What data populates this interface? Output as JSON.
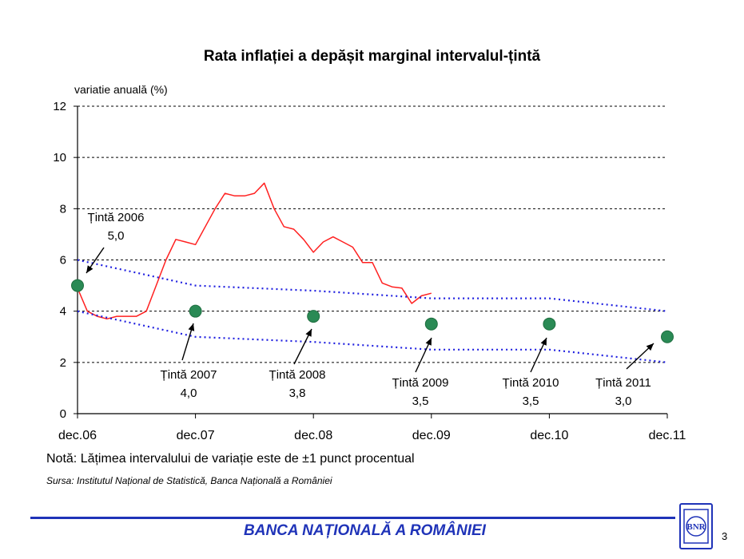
{
  "slide": {
    "footer_text": "BANCA NAȚIONALĂ A ROMÂNIEI",
    "page_number": "3",
    "logo_text": "BNR",
    "brand_color": "#1f33b8"
  },
  "chart_data": {
    "type": "line",
    "title": "Rata inflației a depășit marginal intervalul-țintă",
    "ylabel": "variatie anuală (%)",
    "xlabel": "",
    "x_ticks": [
      "dec.06",
      "dec.07",
      "dec.08",
      "dec.09",
      "dec.10",
      "dec.11"
    ],
    "y_ticks": [
      "0",
      "2",
      "4",
      "6",
      "8",
      "10",
      "12"
    ],
    "ylim": [
      0,
      12
    ],
    "x_range": [
      "2006-12",
      "2011-12"
    ],
    "grid": "horizontal dashed",
    "series": [
      {
        "color": "#ff2020",
        "x": [
          "2006-12",
          "2007-01",
          "2007-02",
          "2007-03",
          "2007-04",
          "2007-05",
          "2007-06",
          "2007-07",
          "2007-08",
          "2007-09",
          "2007-10",
          "2007-11",
          "2007-12",
          "2008-01",
          "2008-02",
          "2008-03",
          "2008-04",
          "2008-05",
          "2008-06",
          "2008-07",
          "2008-08",
          "2008-09",
          "2008-10",
          "2008-11",
          "2008-12",
          "2009-01",
          "2009-02",
          "2009-03",
          "2009-04",
          "2009-05",
          "2009-06",
          "2009-07",
          "2009-08",
          "2009-09",
          "2009-10",
          "2009-11",
          "2009-12"
        ],
        "values": [
          4.9,
          4.0,
          3.8,
          3.7,
          3.8,
          3.8,
          3.8,
          4.0,
          5.0,
          6.0,
          6.8,
          6.7,
          6.6,
          7.3,
          8.0,
          8.6,
          8.5,
          8.5,
          8.6,
          9.0,
          8.0,
          7.3,
          7.2,
          6.8,
          6.3,
          6.7,
          6.9,
          6.7,
          6.5,
          5.9,
          5.9,
          5.1,
          4.95,
          4.9,
          4.3,
          4.6,
          4.7
        ]
      },
      {
        "style": "dotted",
        "color": "#2020e0",
        "x": [
          "2006-12",
          "2007-12",
          "2008-12",
          "2009-12",
          "2010-12",
          "2011-12"
        ],
        "values": [
          6.0,
          5.0,
          4.8,
          4.5,
          4.5,
          4.0
        ]
      },
      {
        "style": "dotted",
        "color": "#2020e0",
        "x": [
          "2006-12",
          "2007-12",
          "2008-12",
          "2009-12",
          "2010-12",
          "2011-12"
        ],
        "values": [
          4.0,
          3.0,
          2.8,
          2.5,
          2.5,
          2.0
        ]
      }
    ],
    "target_points": {
      "color": "#2a8a55",
      "x": [
        "2006-12",
        "2007-12",
        "2008-12",
        "2009-12",
        "2010-12",
        "2011-12"
      ],
      "values": [
        5.0,
        4.0,
        3.8,
        3.5,
        3.5,
        3.0
      ]
    },
    "annotations": [
      {
        "label": "Țintă 2006",
        "value_text": "5,0"
      },
      {
        "label": "Țintă 2007",
        "value_text": "4,0"
      },
      {
        "label": "Țintă 2008",
        "value_text": "3,8"
      },
      {
        "label": "Țintă 2009",
        "value_text": "3,5"
      },
      {
        "label": "Țintă 2010",
        "value_text": "3,5"
      },
      {
        "label": "Țintă 2011",
        "value_text": "3,0"
      }
    ],
    "note": "Notă: Lățimea intervalului de variație este de ±1 punct procentual",
    "source": "Sursa: Institutul Național de Statistică, Banca Națională a României"
  }
}
